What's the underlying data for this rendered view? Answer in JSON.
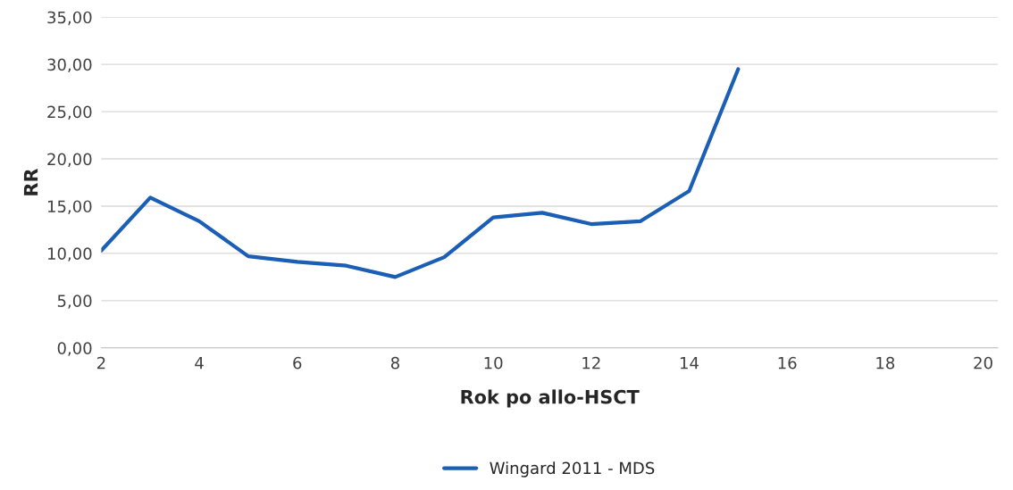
{
  "chart_data": {
    "type": "line",
    "xlabel": "Rok po allo-HSCT",
    "ylabel": "RR",
    "x": [
      2,
      3,
      4,
      5,
      6,
      7,
      8,
      9,
      10,
      11,
      12,
      13,
      14,
      15
    ],
    "series": [
      {
        "name": "Wingard 2011 - MDS",
        "color": "#1a5eb5",
        "values": [
          10.3,
          15.9,
          13.4,
          9.7,
          9.1,
          8.7,
          7.5,
          9.6,
          13.8,
          14.3,
          13.1,
          13.4,
          16.6,
          29.5
        ]
      }
    ],
    "xlim": [
      2,
      20.3
    ],
    "xticks": [
      2,
      4,
      6,
      8,
      10,
      12,
      14,
      16,
      18,
      20
    ],
    "ylim": [
      0,
      35
    ],
    "yticks": [
      {
        "value": 0,
        "label": "0,00"
      },
      {
        "value": 5,
        "label": "5,00"
      },
      {
        "value": 10,
        "label": "10,00"
      },
      {
        "value": 15,
        "label": "15,00"
      },
      {
        "value": 20,
        "label": "20,00"
      },
      {
        "value": 25,
        "label": "25,00"
      },
      {
        "value": 30,
        "label": "30,00"
      },
      {
        "value": 35,
        "label": "35,00"
      }
    ],
    "grid": "y",
    "legend": "bottom",
    "marker": "none",
    "line_style": "solid"
  }
}
